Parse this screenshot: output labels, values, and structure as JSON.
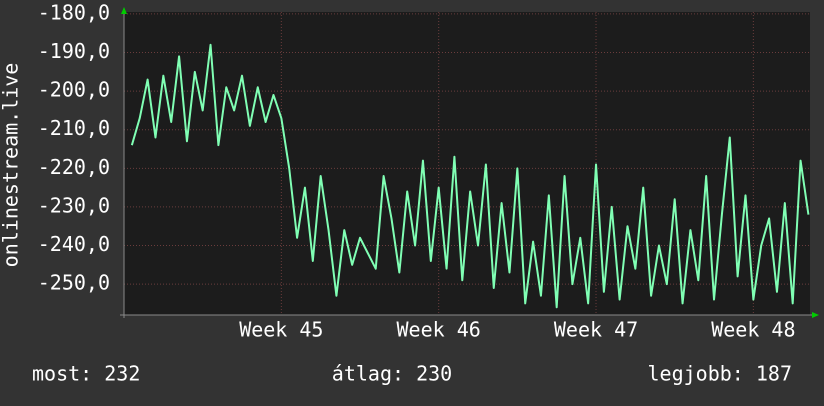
{
  "chart_data": {
    "type": "line",
    "y_label": "onlinestream.live",
    "x": [
      44.05,
      44.1,
      44.15,
      44.2,
      44.25,
      44.3,
      44.35,
      44.4,
      44.45,
      44.5,
      44.55,
      44.6,
      44.65,
      44.7,
      44.75,
      44.8,
      44.85,
      44.9,
      44.95,
      45.0,
      45.05,
      45.1,
      45.15,
      45.2,
      45.25,
      45.3,
      45.35,
      45.4,
      45.45,
      45.5,
      45.55,
      45.6,
      45.65,
      45.7,
      45.75,
      45.8,
      45.85,
      45.9,
      45.95,
      46.0,
      46.05,
      46.1,
      46.15,
      46.2,
      46.25,
      46.3,
      46.35,
      46.4,
      46.45,
      46.5,
      46.55,
      46.6,
      46.65,
      46.7,
      46.75,
      46.8,
      46.85,
      46.9,
      46.95,
      47.0,
      47.05,
      47.1,
      47.15,
      47.2,
      47.25,
      47.3,
      47.35,
      47.4,
      47.45,
      47.5,
      47.55,
      47.6,
      47.65,
      47.7,
      47.75,
      47.8,
      47.85,
      47.9,
      47.95,
      48.0,
      48.05,
      48.1,
      48.15,
      48.2,
      48.25,
      48.3,
      48.35
    ],
    "series": [
      {
        "name": "onlinestream.live",
        "color": "#80ffb4",
        "values": [
          -214,
          -207,
          -197,
          -212,
          -196,
          -208,
          -191,
          -213,
          -195,
          -205,
          -188,
          -214,
          -199,
          -205,
          -196,
          -209,
          -199,
          -208,
          -201,
          -207,
          -220,
          -238,
          -225,
          -244,
          -222,
          -236,
          -253,
          -236,
          -245,
          -238,
          -242,
          -246,
          -222,
          -233,
          -247,
          -226,
          -240,
          -218,
          -244,
          -225,
          -246,
          -217,
          -249,
          -226,
          -240,
          -219,
          -251,
          -229,
          -247,
          -220,
          -255,
          -239,
          -253,
          -227,
          -256,
          -222,
          -250,
          -238,
          -255,
          -219,
          -252,
          -230,
          -254,
          -235,
          -246,
          -225,
          -253,
          -240,
          -250,
          -228,
          -255,
          -236,
          -249,
          -222,
          -254,
          -232,
          -212,
          -248,
          -227,
          -254,
          -240,
          -233,
          -252,
          -229,
          -255,
          -218,
          -232
        ]
      }
    ],
    "xlim": [
      44.0,
      48.36
    ],
    "xticks": [
      {
        "value": 45,
        "label": "Week 45"
      },
      {
        "value": 46,
        "label": "Week 46"
      },
      {
        "value": 47,
        "label": "Week 47"
      },
      {
        "value": 48,
        "label": "Week 48"
      }
    ],
    "ylim": [
      -258,
      -179.5
    ],
    "yticks": [
      {
        "value": -180,
        "label": "-180,0"
      },
      {
        "value": -190,
        "label": "-190,0"
      },
      {
        "value": -200,
        "label": "-200,0"
      },
      {
        "value": -210,
        "label": "-210,0"
      },
      {
        "value": -220,
        "label": "-220,0"
      },
      {
        "value": -230,
        "label": "-230,0"
      },
      {
        "value": -240,
        "label": "-240,0"
      },
      {
        "value": -250,
        "label": "-250,0"
      }
    ],
    "grid": true,
    "footer": {
      "current": "most: 232",
      "average": "átlag: 230",
      "best": "legjobb: 187"
    }
  }
}
